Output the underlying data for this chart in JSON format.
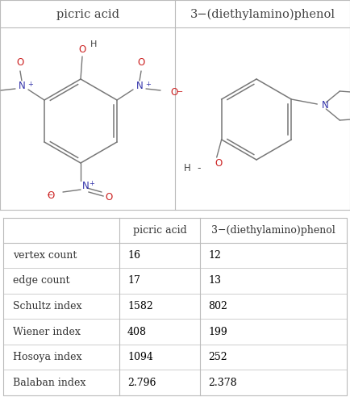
{
  "col1_title": "picric acid",
  "col2_title": "3−(diethylamino)phenol",
  "table_col1": "picric acid",
  "table_col2": "3−(diethylamino)phenol",
  "row_labels": [
    "vertex count",
    "edge count",
    "Schultz index",
    "Wiener index",
    "Hosoya index",
    "Balaban index"
  ],
  "col1_values": [
    "16",
    "17",
    "1582",
    "408",
    "1094",
    "2.796"
  ],
  "col2_values": [
    "12",
    "13",
    "802",
    "199",
    "252",
    "2.378"
  ],
  "bg_color": "#ffffff",
  "border_color": "#bbbbbb",
  "text_color": "#333333",
  "value_color": "#000000",
  "header_fontsize": 10.5,
  "label_fontsize": 9.5,
  "value_fontsize": 9.5,
  "red_color": "#cc2222",
  "blue_color": "#3333aa",
  "mol_gray": "#777777",
  "title_color": "#444444"
}
